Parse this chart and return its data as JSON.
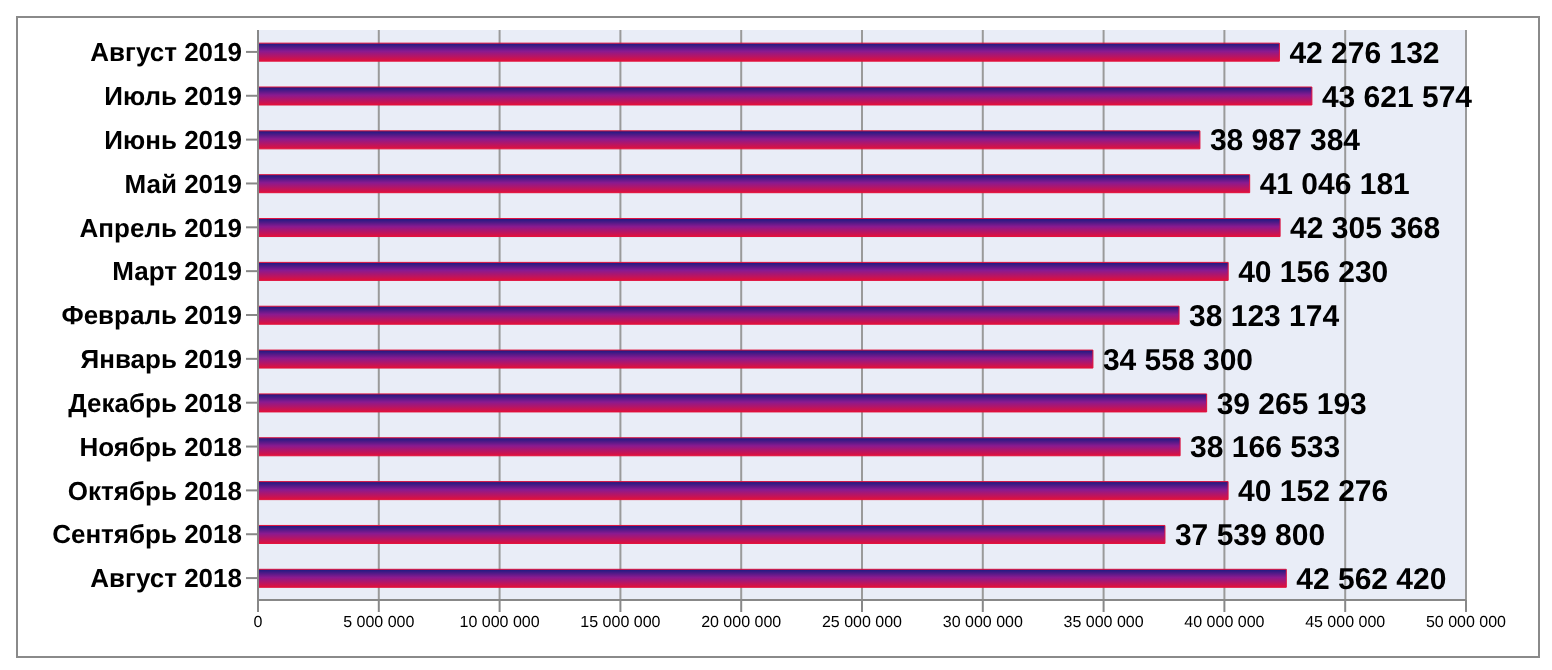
{
  "chart_data": {
    "type": "bar",
    "orientation": "horizontal",
    "categories": [
      "Август 2019",
      "Июль 2019",
      "Июнь 2019",
      "Май 2019",
      "Апрель 2019",
      "Март 2019",
      "Февраль 2019",
      "Январь 2019",
      "Декабрь 2018",
      "Ноябрь 2018",
      "Октябрь 2018",
      "Сентябрь 2018",
      "Август 2018"
    ],
    "values": [
      42276132,
      43621574,
      38987384,
      41046181,
      42305368,
      40156230,
      38123174,
      34558300,
      39265193,
      38166533,
      40152276,
      37539800,
      42562420
    ],
    "value_labels": [
      "42 276 132",
      "43 621 574",
      "38 987 384",
      "41 046 181",
      "42 305 368",
      "40 156 230",
      "38 123 174",
      "34 558 300",
      "39 265 193",
      "38 166 533",
      "40 152 276",
      "37 539 800",
      "42 562 420"
    ],
    "color": "#e0103c",
    "xlim": [
      0,
      50000000
    ],
    "xticks": [
      0,
      {
        "value": 5000000,
        "label": "5 000 000"
      },
      {
        "value": 10000000,
        "label": "10 000 000"
      },
      {
        "value": 15000000,
        "label": "15 000 000"
      },
      {
        "value": 20000000,
        "label": "20 000 000"
      },
      {
        "value": 25000000,
        "label": "25 000 000"
      },
      {
        "value": 30000000,
        "label": "30 000 000"
      },
      {
        "value": 35000000,
        "label": "35 000 000"
      },
      {
        "value": 40000000,
        "label": "40 000 000"
      },
      {
        "value": 45000000,
        "label": "45 000 000"
      },
      {
        "value": 50000000,
        "label": "50 000 000"
      }
    ],
    "grid": "x",
    "legend": false
  }
}
